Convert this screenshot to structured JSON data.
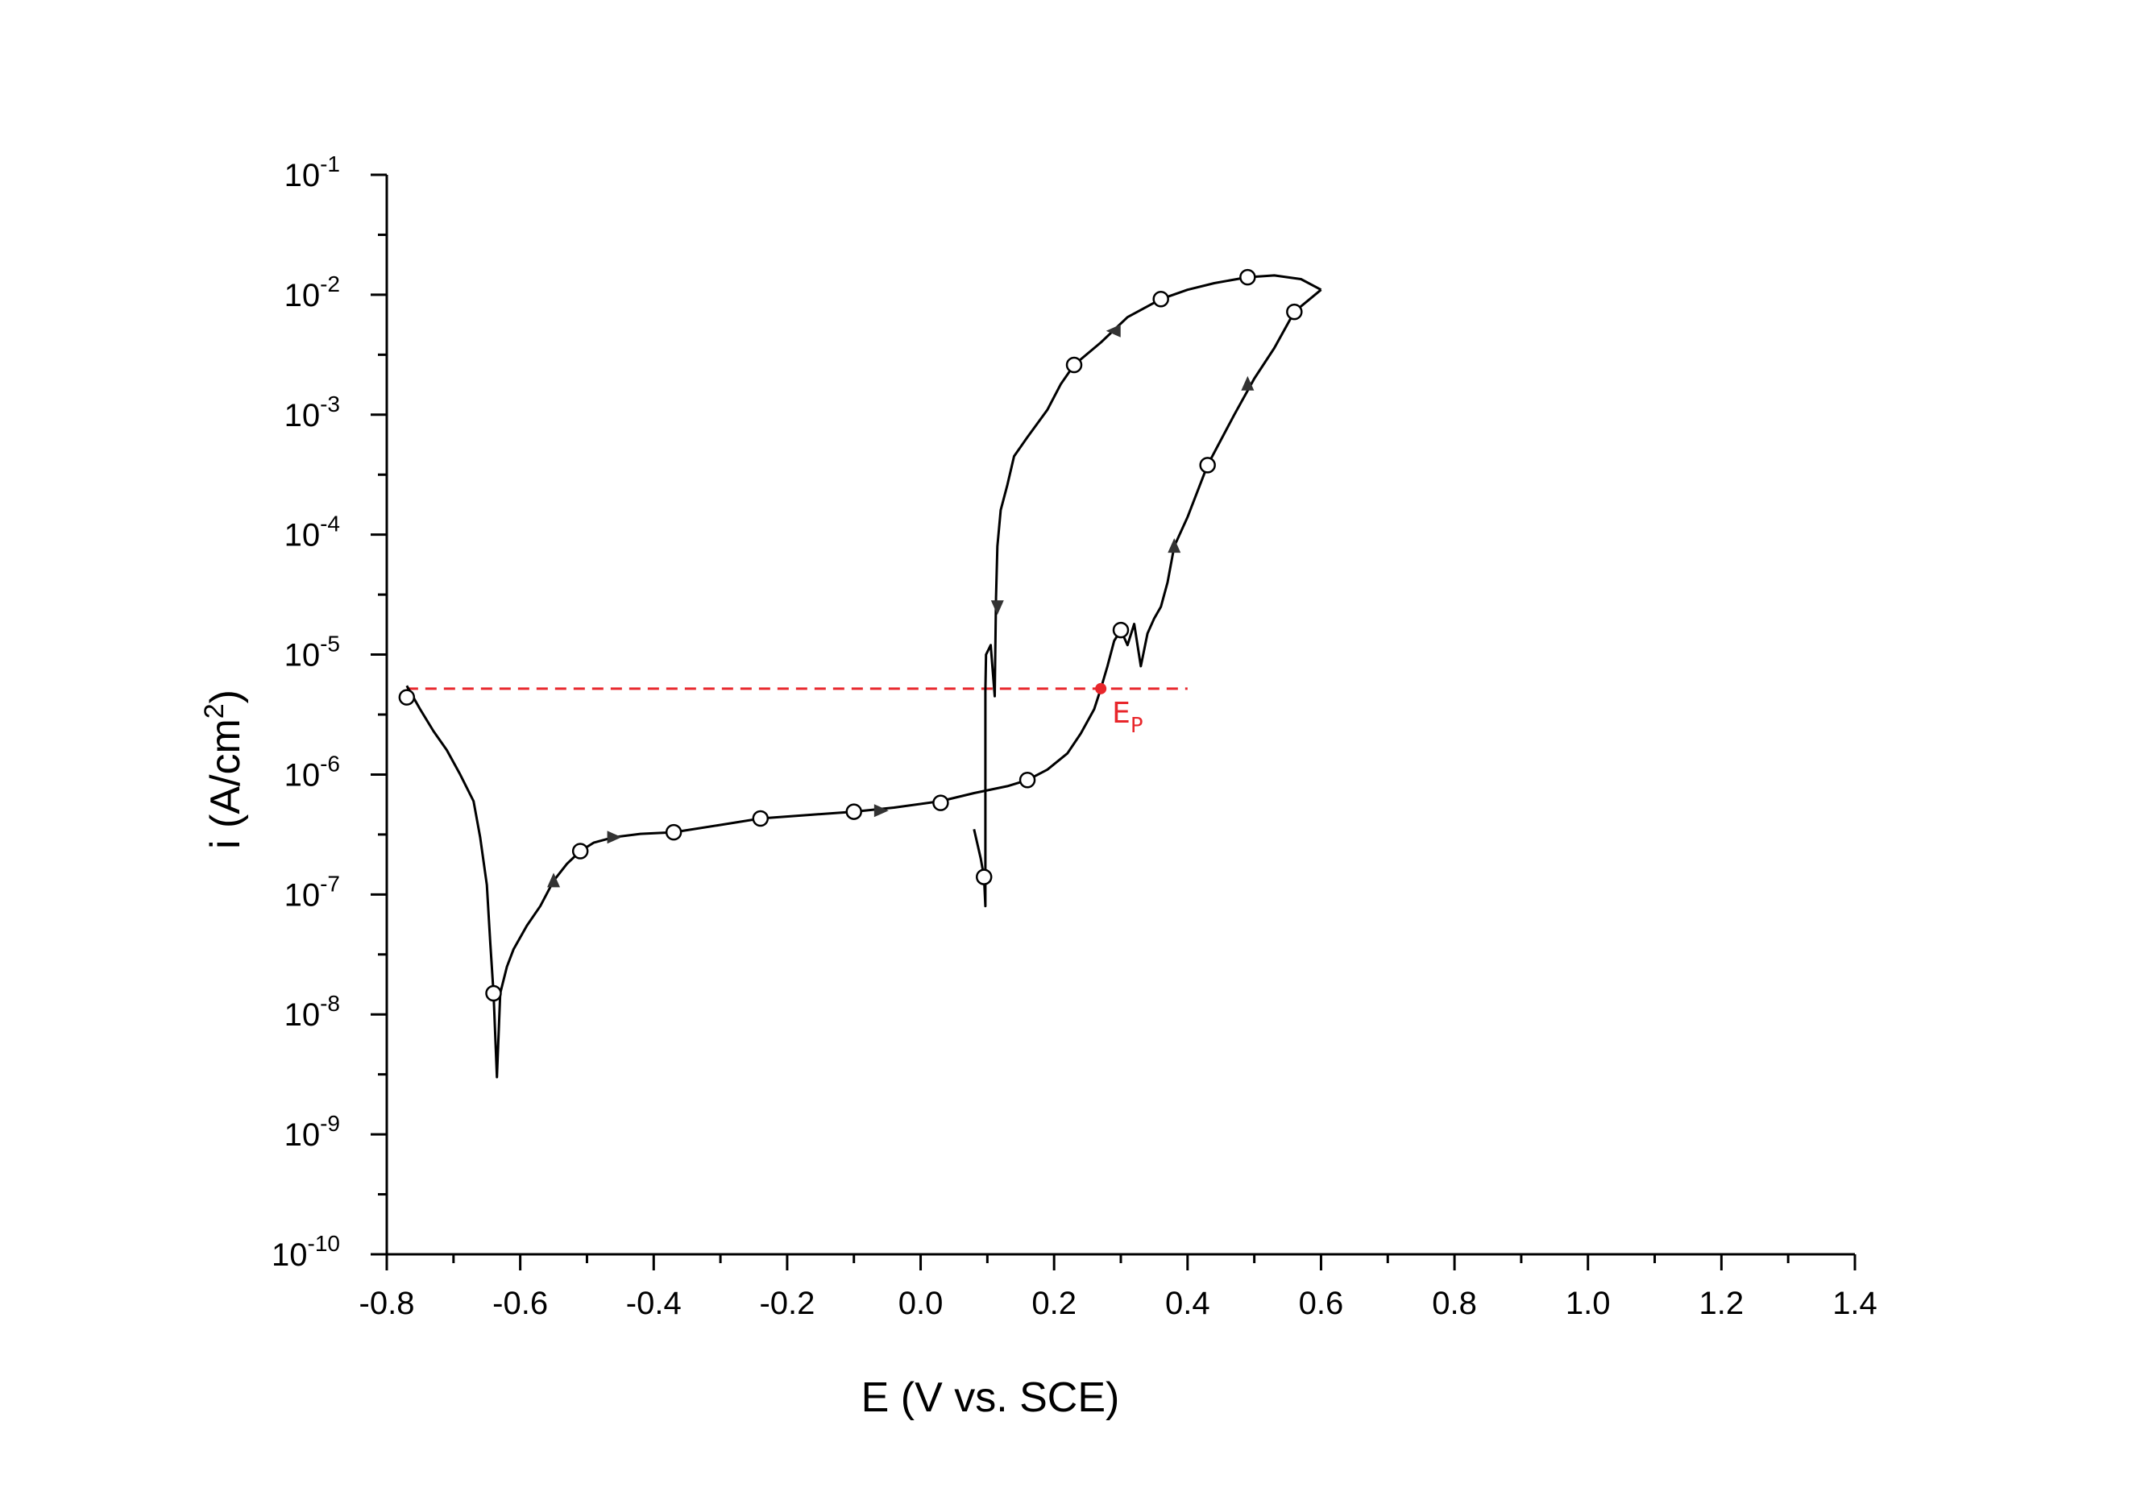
{
  "chart_data": {
    "type": "line",
    "xlabel": "E (V vs. SCE)",
    "ylabel_main": "i (A/cm",
    "ylabel_sup": "2",
    "ylabel_close": ")",
    "xlim": [
      -0.8,
      1.4
    ],
    "ylim_log10": [
      -10,
      -1
    ],
    "y_scale": "log",
    "x_ticks": [
      "-0.8",
      "-0.6",
      "-0.4",
      "-0.2",
      "0.0",
      "0.2",
      "0.4",
      "0.6",
      "0.8",
      "1.0",
      "1.2",
      "1.4"
    ],
    "y_ticks": [
      {
        "base": "10",
        "exp": "-1"
      },
      {
        "base": "10",
        "exp": "-2"
      },
      {
        "base": "10",
        "exp": "-3"
      },
      {
        "base": "10",
        "exp": "-4"
      },
      {
        "base": "10",
        "exp": "-5"
      },
      {
        "base": "10",
        "exp": "-6"
      },
      {
        "base": "10",
        "exp": "-7"
      },
      {
        "base": "10",
        "exp": "-8"
      },
      {
        "base": "10",
        "exp": "-9"
      },
      {
        "base": "10",
        "exp": "-10"
      }
    ],
    "series": [
      {
        "name": "",
        "color": "#000000",
        "forward_scan": [
          [
            -0.77,
            5.5e-06
          ],
          [
            -0.75,
            3.5e-06
          ],
          [
            -0.73,
            2.3e-06
          ],
          [
            -0.71,
            1.6e-06
          ],
          [
            -0.69,
            1e-06
          ],
          [
            -0.67,
            6e-07
          ],
          [
            -0.66,
            3e-07
          ],
          [
            -0.65,
            1.2e-07
          ],
          [
            -0.645,
            4e-08
          ],
          [
            -0.64,
            1.5e-08
          ],
          [
            -0.635,
            3e-09
          ],
          [
            -0.63,
            1.5e-08
          ],
          [
            -0.62,
            2.5e-08
          ],
          [
            -0.61,
            3.5e-08
          ],
          [
            -0.59,
            5.5e-08
          ],
          [
            -0.57,
            8e-08
          ],
          [
            -0.55,
            1.3e-07
          ],
          [
            -0.53,
            1.8e-07
          ],
          [
            -0.51,
            2.3e-07
          ],
          [
            -0.49,
            2.7e-07
          ],
          [
            -0.46,
            3e-07
          ],
          [
            -0.42,
            3.2e-07
          ],
          [
            -0.37,
            3.3e-07
          ],
          [
            -0.3,
            3.8e-07
          ],
          [
            -0.24,
            4.3e-07
          ],
          [
            -0.17,
            4.6e-07
          ],
          [
            -0.1,
            4.9e-07
          ],
          [
            -0.04,
            5.3e-07
          ],
          [
            0.03,
            6e-07
          ],
          [
            0.08,
            7e-07
          ],
          [
            0.13,
            8e-07
          ],
          [
            0.16,
            9e-07
          ],
          [
            0.19,
            1.1e-06
          ],
          [
            0.22,
            1.5e-06
          ],
          [
            0.24,
            2.2e-06
          ],
          [
            0.26,
            3.5e-06
          ],
          [
            0.27,
            5.2e-06
          ],
          [
            0.28,
            8e-06
          ],
          [
            0.29,
            1.3e-05
          ],
          [
            0.3,
            1.6e-05
          ],
          [
            0.31,
            1.2e-05
          ],
          [
            0.32,
            1.8e-05
          ],
          [
            0.33,
            8e-06
          ],
          [
            0.34,
            1.5e-05
          ],
          [
            0.35,
            2e-05
          ],
          [
            0.36,
            2.5e-05
          ],
          [
            0.37,
            4e-05
          ],
          [
            0.38,
            8e-05
          ],
          [
            0.4,
            0.00014
          ],
          [
            0.43,
            0.00038
          ],
          [
            0.47,
            0.001
          ],
          [
            0.5,
            0.002
          ],
          [
            0.53,
            0.0036
          ],
          [
            0.56,
            0.0072
          ],
          [
            0.6,
            0.011
          ]
        ],
        "reverse_scan": [
          [
            0.6,
            0.011
          ],
          [
            0.57,
            0.0135
          ],
          [
            0.53,
            0.0145
          ],
          [
            0.49,
            0.014
          ],
          [
            0.44,
            0.0125
          ],
          [
            0.4,
            0.011
          ],
          [
            0.36,
            0.0092
          ],
          [
            0.31,
            0.0065
          ],
          [
            0.27,
            0.004
          ],
          [
            0.23,
            0.0026
          ],
          [
            0.21,
            0.0018
          ],
          [
            0.19,
            0.0011
          ],
          [
            0.16,
            0.00065
          ],
          [
            0.14,
            0.00045
          ],
          [
            0.13,
            0.00026
          ],
          [
            0.12,
            0.00016
          ],
          [
            0.115,
            8e-05
          ],
          [
            0.113,
            3e-05
          ],
          [
            0.112,
            1.2e-05
          ],
          [
            0.111,
            4.5e-06
          ],
          [
            0.105,
            1.2e-05
          ],
          [
            0.098,
            1e-05
          ],
          [
            0.097,
            5e-06
          ],
          [
            0.097,
            8e-08
          ],
          [
            0.095,
            1.4e-07
          ],
          [
            0.09,
            2e-07
          ],
          [
            0.08,
            3.5e-07
          ]
        ],
        "markers": [
          [
            -0.77,
            4.4e-06
          ],
          [
            -0.64,
            1.5e-08
          ],
          [
            -0.51,
            2.3e-07
          ],
          [
            -0.37,
            3.3e-07
          ],
          [
            -0.24,
            4.3e-07
          ],
          [
            -0.1,
            4.9e-07
          ],
          [
            0.03,
            5.8e-07
          ],
          [
            0.095,
            1.4e-07
          ],
          [
            0.16,
            9e-07
          ],
          [
            0.3,
            1.6e-05
          ],
          [
            0.43,
            0.00038
          ],
          [
            0.56,
            0.0072
          ],
          [
            0.49,
            0.014
          ],
          [
            0.36,
            0.0092
          ],
          [
            0.23,
            0.0026
          ]
        ],
        "arrows": [
          {
            "at": [
              -0.55,
              1.3e-07
            ],
            "dir": "up"
          },
          {
            "at": [
              -0.46,
              3e-07
            ],
            "dir": "right"
          },
          {
            "at": [
              -0.06,
              5e-07
            ],
            "dir": "right"
          },
          {
            "at": [
              0.38,
              8e-05
            ],
            "dir": "up"
          },
          {
            "at": [
              0.49,
              0.0018
            ],
            "dir": "up"
          },
          {
            "at": [
              0.29,
              0.005
            ],
            "dir": "left"
          },
          {
            "at": [
              0.115,
              2.5e-05
            ],
            "dir": "down"
          }
        ]
      }
    ],
    "annotations": [
      {
        "type": "hline",
        "y": 5.2e-06,
        "x_from": -0.77,
        "x_to": 0.4,
        "color": "#e8262b",
        "style": "dashed"
      },
      {
        "type": "point",
        "label_main": "E",
        "label_sub": "P",
        "x": 0.27,
        "y": 5.2e-06,
        "color": "#e8262b"
      }
    ],
    "grid": false,
    "legend": "none"
  }
}
